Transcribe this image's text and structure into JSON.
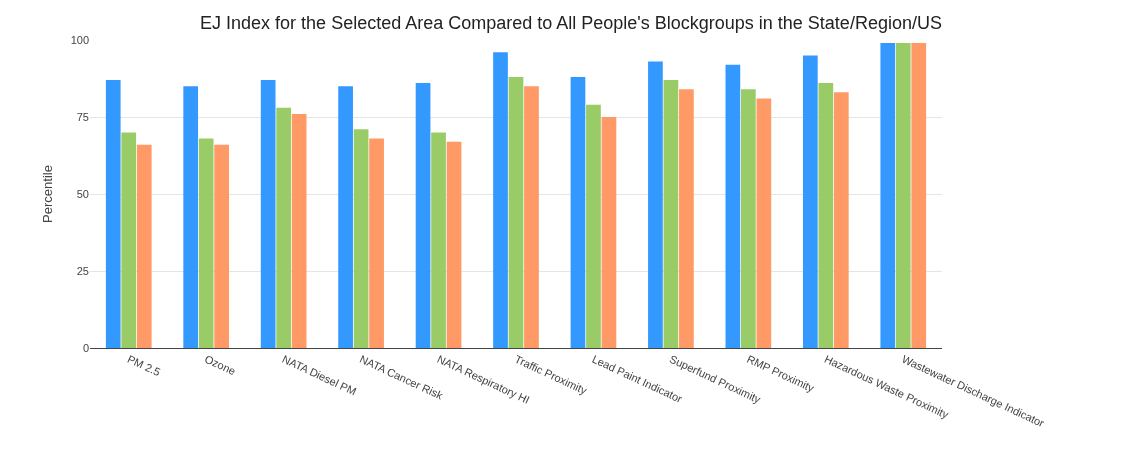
{
  "chart_data": {
    "type": "bar",
    "title": "EJ Index for the Selected Area Compared to All People's Blockgroups in the State/Region/US",
    "ylabel": "Percentile",
    "categories": [
      "PM 2.5",
      "Ozone",
      "NATA Diesel PM",
      "NATA Cancer Risk",
      "NATA Respiratory HI",
      "Traffic Proximity",
      "Lead Paint Indicator",
      "Superfund Proximity",
      "RMP Proximity",
      "Hazardous Waste Proximity",
      "Wastewater Discharge Indicator"
    ],
    "series": [
      {
        "color": "#3399ff",
        "values": [
          87,
          85,
          87,
          85,
          86,
          96,
          88,
          93,
          92,
          95,
          99
        ]
      },
      {
        "color": "#99cc66",
        "values": [
          70,
          68,
          78,
          71,
          70,
          88,
          79,
          87,
          84,
          86,
          99
        ]
      },
      {
        "color": "#ff9966",
        "values": [
          66,
          66,
          76,
          68,
          67,
          85,
          75,
          84,
          81,
          83,
          99
        ]
      }
    ],
    "ylim": [
      0,
      100
    ],
    "yticks": [
      0,
      25,
      50,
      75,
      100
    ],
    "grid": "y"
  }
}
